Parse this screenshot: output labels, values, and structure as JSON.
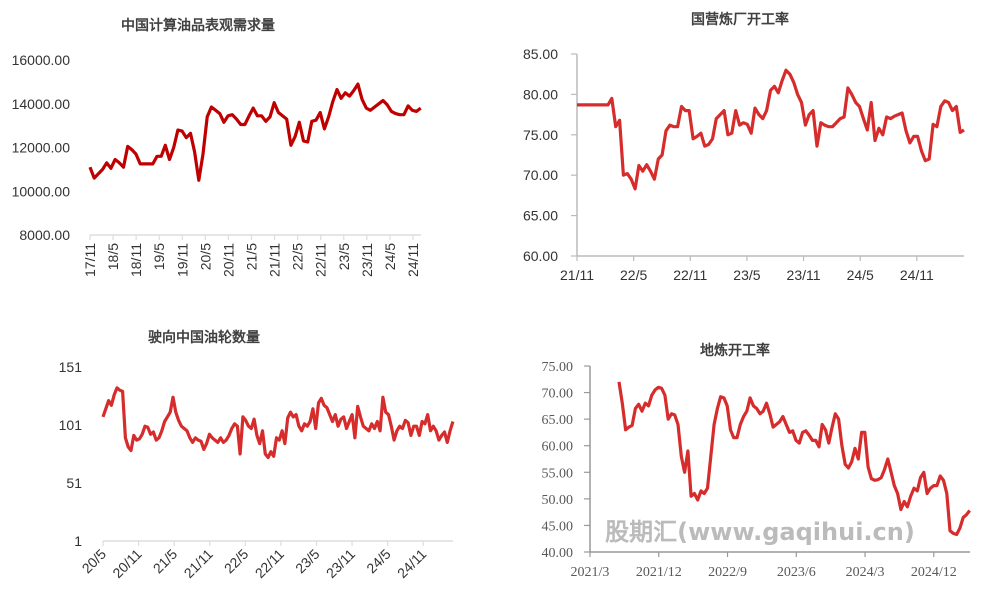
{
  "chart_data": [
    {
      "type": "line",
      "title": "中国计算油品表观需求量",
      "ylim": [
        8000,
        16000
      ],
      "yticks": [
        "8000.00",
        "10000.00",
        "12000.00",
        "14000.00",
        "16000.00"
      ],
      "xticks": [
        "17/11",
        "18/5",
        "18/11",
        "19/5",
        "19/11",
        "20/5",
        "20/11",
        "21/5",
        "21/11",
        "22/5",
        "22/11",
        "23/5",
        "23/11",
        "24/5",
        "24/11"
      ],
      "x_start_month": 0,
      "x_end_month": 86,
      "color": "#c00000",
      "values": [
        11100,
        10600,
        10800,
        11000,
        11300,
        11050,
        11450,
        11300,
        11100,
        12050,
        11900,
        11700,
        11250,
        11250,
        11250,
        11250,
        11600,
        11600,
        12100,
        11450,
        12000,
        12800,
        12750,
        12450,
        12650,
        11800,
        10500,
        11700,
        13400,
        13850,
        13700,
        13550,
        13150,
        13450,
        13500,
        13300,
        13050,
        13050,
        13450,
        13800,
        13450,
        13450,
        13200,
        13400,
        14050,
        13600,
        13450,
        13300,
        12100,
        12500,
        13150,
        12300,
        12250,
        13200,
        13250,
        13600,
        12850,
        13400,
        14100,
        14650,
        14250,
        14500,
        14350,
        14600,
        14900,
        14200,
        13800,
        13700,
        13850,
        14000,
        14150,
        13950,
        13650,
        13550,
        13500,
        13500,
        13900,
        13700,
        13650,
        13800
      ]
    },
    {
      "type": "line",
      "title": "国营炼厂开工率",
      "ylim": [
        60,
        85
      ],
      "yticks": [
        "60.00",
        "65.00",
        "70.00",
        "75.00",
        "80.00",
        "85.00"
      ],
      "xticks": [
        "21/11",
        "22/5",
        "22/11",
        "23/5",
        "23/11",
        "24/5",
        "24/11"
      ],
      "x_start_month": 0,
      "x_end_month": 41,
      "color": "#d62c2c",
      "values": [
        78.7,
        78.7,
        78.7,
        78.7,
        78.7,
        78.7,
        78.7,
        78.7,
        78.7,
        79.5,
        76,
        76.8,
        70,
        70.2,
        69.5,
        68.3,
        71.2,
        70.5,
        71.3,
        70.5,
        69.5,
        72,
        72.5,
        75.5,
        76.2,
        76,
        76,
        78.5,
        78,
        78,
        74.5,
        74.8,
        75.2,
        73.6,
        73.8,
        74.5,
        77,
        77.5,
        78,
        75,
        75.2,
        78,
        76.2,
        76.5,
        76.3,
        75.2,
        78.3,
        77.5,
        77,
        78,
        80.5,
        81,
        80.2,
        81.7,
        83,
        82.5,
        81.5,
        80,
        79,
        76.2,
        77.5,
        78,
        73.6,
        76.5,
        76.2,
        76,
        76,
        76.5,
        77,
        77.2,
        80.8,
        80,
        79,
        78.5,
        77,
        75.6,
        79,
        74.3,
        75.8,
        75,
        77.2,
        77,
        77.3,
        77.5,
        77.7,
        75.5,
        74,
        74.8,
        74.8,
        73,
        71.8,
        72,
        76.3,
        76,
        78.5,
        79.2,
        79,
        78,
        78.5,
        75.3,
        75.6
      ]
    },
    {
      "type": "line",
      "title": "驶向中国油轮数量",
      "ylim": [
        1,
        151
      ],
      "yticks": [
        "1",
        "51",
        "101",
        "151"
      ],
      "xticks": [
        "20/5",
        "20/11",
        "21/5",
        "21/11",
        "22/5",
        "22/11",
        "23/5",
        "23/11",
        "24/5",
        "24/11"
      ],
      "x_start_month": 0,
      "x_end_month": 59,
      "color": "#d62c2c",
      "values": [
        108,
        115,
        122,
        118,
        127,
        133,
        131,
        130,
        90,
        82,
        79,
        92,
        88,
        89,
        93,
        100,
        99,
        93,
        95,
        88,
        90,
        96,
        104,
        108,
        112,
        125,
        112,
        105,
        100,
        98,
        96,
        90,
        86,
        90,
        88,
        87,
        80,
        85,
        93,
        90,
        88,
        86,
        90,
        86,
        88,
        92,
        98,
        102,
        100,
        76,
        108,
        105,
        100,
        98,
        106,
        92,
        85,
        96,
        76,
        73,
        78,
        74,
        90,
        88,
        96,
        85,
        107,
        112,
        108,
        110,
        100,
        96,
        102,
        100,
        104,
        115,
        98,
        120,
        124,
        118,
        116,
        110,
        104,
        110,
        100,
        106,
        108,
        98,
        104,
        110,
        90,
        117,
        108,
        100,
        98,
        96,
        102,
        98,
        104,
        96,
        125,
        112,
        110,
        100,
        88,
        96,
        100,
        98,
        105,
        103,
        92,
        100,
        100,
        92,
        104,
        102,
        110,
        96,
        100,
        96,
        88,
        92,
        95,
        86,
        96,
        104
      ]
    },
    {
      "type": "line",
      "title": "地炼开工率",
      "ylim": [
        40,
        75
      ],
      "yticks": [
        "40.00",
        "45.00",
        "50.00",
        "55.00",
        "60.00",
        "65.00",
        "70.00",
        "75.00"
      ],
      "xticks": [
        "2021/3",
        "2021/12",
        "2022/9",
        "2023/6",
        "2024/3",
        "2024/12"
      ],
      "x_start_month": 3.8,
      "x_end_month": 49.7,
      "color": "#d62c2c",
      "values": [
        72,
        68,
        63,
        63.5,
        63.8,
        67,
        67.8,
        66.5,
        68,
        67.5,
        69.5,
        70.5,
        71,
        70.8,
        69.5,
        65,
        66,
        65.8,
        64,
        58,
        55,
        59,
        50.5,
        51,
        49.8,
        51.5,
        51,
        52,
        58,
        64,
        67,
        69.2,
        69,
        67.5,
        63,
        61.5,
        61.5,
        64,
        65.5,
        66.5,
        69,
        67.5,
        67,
        66,
        66.5,
        68,
        66,
        63.5,
        64,
        64.5,
        65.5,
        64,
        62.5,
        62.8,
        61,
        60.5,
        62.5,
        62.8,
        62,
        61,
        61,
        59.8,
        64,
        63,
        60.5,
        63.5,
        66,
        65,
        60,
        56.5,
        55.8,
        57,
        59.5,
        57.5,
        62.5,
        62.5,
        56,
        53.8,
        53.5,
        53.6,
        54,
        55.5,
        57.5,
        55,
        52.5,
        51,
        48,
        49.5,
        48.5,
        50.5,
        52,
        51.5,
        54,
        55,
        51,
        52,
        52.5,
        52.5,
        54.3,
        53.5,
        51,
        44,
        43.5,
        43.3,
        44.5,
        46.5,
        47,
        47.8
      ]
    }
  ],
  "watermark": "股期汇(www.gaqihui.cn)"
}
